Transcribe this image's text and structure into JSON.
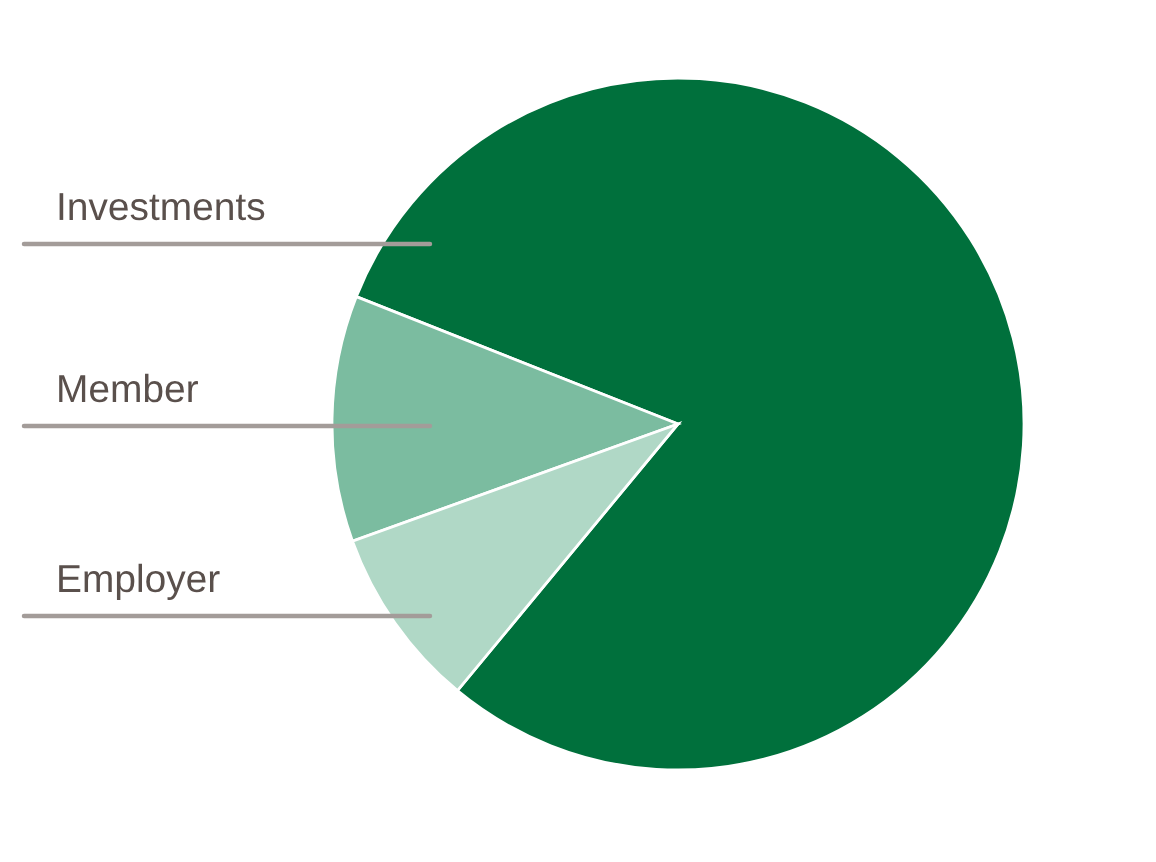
{
  "chart_data": {
    "type": "pie",
    "categories": [
      "Investments",
      "Member",
      "Employer"
    ],
    "values": [
      80,
      11.5,
      8.5
    ],
    "colors": [
      "#00703c",
      "#7bbca0",
      "#b0d8c6"
    ]
  }
}
